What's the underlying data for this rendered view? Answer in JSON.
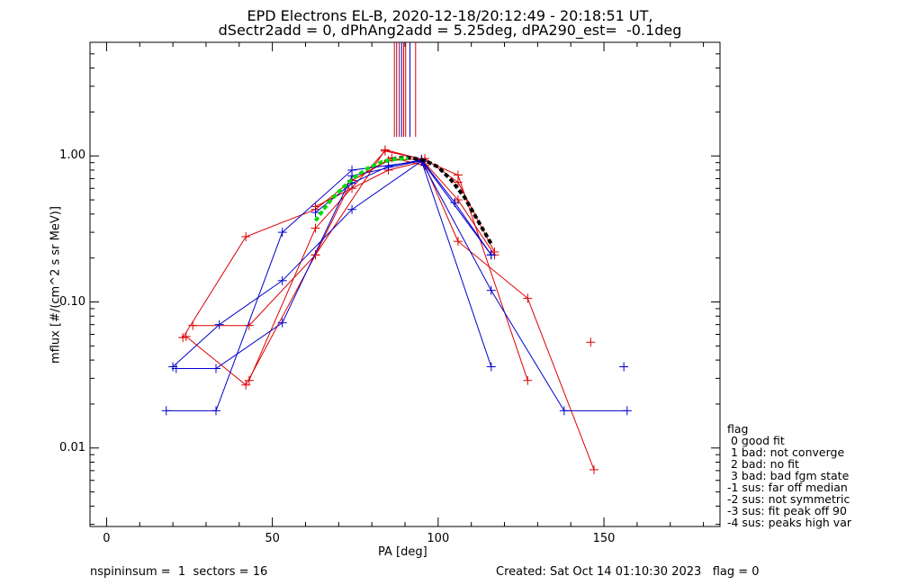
{
  "header": {
    "title_line1": "EPD Electrons EL-B, 2020-12-18/20:12:49 - 20:18:51 UT,",
    "title_line2": "dSectr2add = 0, dPhAng2add = 5.25deg, dPA290_est=  -0.1deg"
  },
  "footer": {
    "left": "nspininsum =  1  sectors = 16",
    "right": "Created: Sat Oct 14 01:10:30 2023   flag = 0"
  },
  "legend": {
    "title": "flag",
    "items": [
      " 0 good fit",
      " 1 bad: not converge",
      " 2 bad: no fit",
      " 3 bad: bad fgm state",
      "-1 sus: far off median",
      "-2 sus: not symmetric",
      "-3 sus: fit peak off 90",
      "-4 sus: peaks high var"
    ]
  },
  "chart_data": {
    "type": "line",
    "xlabel": "PA [deg]",
    "ylabel": "mflux [#/(cm^2 s sr MeV)]",
    "xlim": [
      -5,
      185
    ],
    "ylim": [
      0.0029,
      6.0
    ],
    "yscale": "log",
    "x_ticks": [
      0,
      50,
      100,
      150
    ],
    "y_ticks": [
      0.01,
      0.1,
      1.0
    ],
    "y_tick_labels": [
      "0.01",
      "0.10",
      "1.00"
    ],
    "colors": {
      "red": "#dd0000",
      "blue": "#0000cc",
      "black": "#000000",
      "green": "#00dd00",
      "purple": "#880044"
    },
    "series": [
      {
        "color": "red",
        "x": [
          23,
          42,
          63,
          74,
          85,
          96,
          106,
          117
        ],
        "y": [
          0.057,
          0.28,
          0.43,
          0.68,
          0.93,
          0.96,
          0.66,
          0.22
        ]
      },
      {
        "color": "red",
        "x": [
          26,
          43,
          63,
          74,
          86,
          96,
          106,
          127,
          147
        ],
        "y": [
          0.069,
          0.069,
          0.21,
          0.68,
          0.97,
          0.86,
          0.26,
          0.106,
          0.0071
        ]
      },
      {
        "color": "red",
        "x": [
          24,
          42,
          63,
          84,
          95,
          106,
          127
        ],
        "y": [
          0.058,
          0.027,
          0.21,
          1.1,
          0.95,
          0.74,
          0.029
        ]
      },
      {
        "color": "red",
        "x": [
          43,
          63,
          84,
          95,
          106,
          117
        ],
        "y": [
          0.029,
          0.32,
          1.08,
          0.95,
          0.5,
          0.21
        ]
      },
      {
        "color": "red",
        "x": [
          63,
          74,
          85,
          96
        ],
        "y": [
          0.45,
          0.6,
          0.8,
          0.92
        ]
      },
      {
        "color": "red",
        "x": [
          146
        ],
        "y": [
          0.053
        ]
      },
      {
        "color": "blue",
        "x": [
          20,
          34,
          53,
          74,
          95,
          116
        ],
        "y": [
          0.036,
          0.07,
          0.14,
          0.43,
          0.92,
          0.036
        ]
      },
      {
        "color": "blue",
        "x": [
          21,
          33,
          53,
          74,
          95,
          116
        ],
        "y": [
          0.035,
          0.035,
          0.072,
          0.73,
          0.93,
          0.21
        ]
      },
      {
        "color": "blue",
        "x": [
          18,
          33,
          53,
          74,
          95,
          116,
          138,
          157
        ],
        "y": [
          0.018,
          0.018,
          0.3,
          0.8,
          0.92,
          0.12,
          0.018,
          0.018
        ]
      },
      {
        "color": "blue",
        "x": [
          63,
          74,
          85,
          95,
          105,
          116
        ],
        "y": [
          0.41,
          0.65,
          0.85,
          0.94,
          0.48,
          0.21
        ]
      },
      {
        "color": "blue",
        "x": [
          156
        ],
        "y": [
          0.036
        ]
      },
      {
        "color": "black",
        "dashed": true,
        "x": [
          84,
          88,
          92,
          96,
          100,
          104,
          108,
          112,
          116
        ],
        "y": [
          0.92,
          0.97,
          0.97,
          0.93,
          0.84,
          0.68,
          0.52,
          0.36,
          0.25
        ]
      },
      {
        "color": "green",
        "dashed": true,
        "x": [
          63,
          67,
          71,
          75,
          79,
          83,
          87,
          91
        ],
        "y": [
          0.36,
          0.48,
          0.6,
          0.72,
          0.83,
          0.91,
          0.95,
          0.96
        ]
      }
    ],
    "vertical_lines": [
      {
        "color": "red",
        "x": 86.8
      },
      {
        "color": "purple",
        "x": 87.5
      },
      {
        "color": "purple",
        "x": 88.3
      },
      {
        "color": "blue",
        "x": 89.0
      },
      {
        "color": "red",
        "x": 89.6
      },
      {
        "color": "red",
        "x": 90.2
      },
      {
        "color": "blue",
        "x": 91.5
      },
      {
        "color": "red",
        "x": 93.2
      }
    ]
  }
}
